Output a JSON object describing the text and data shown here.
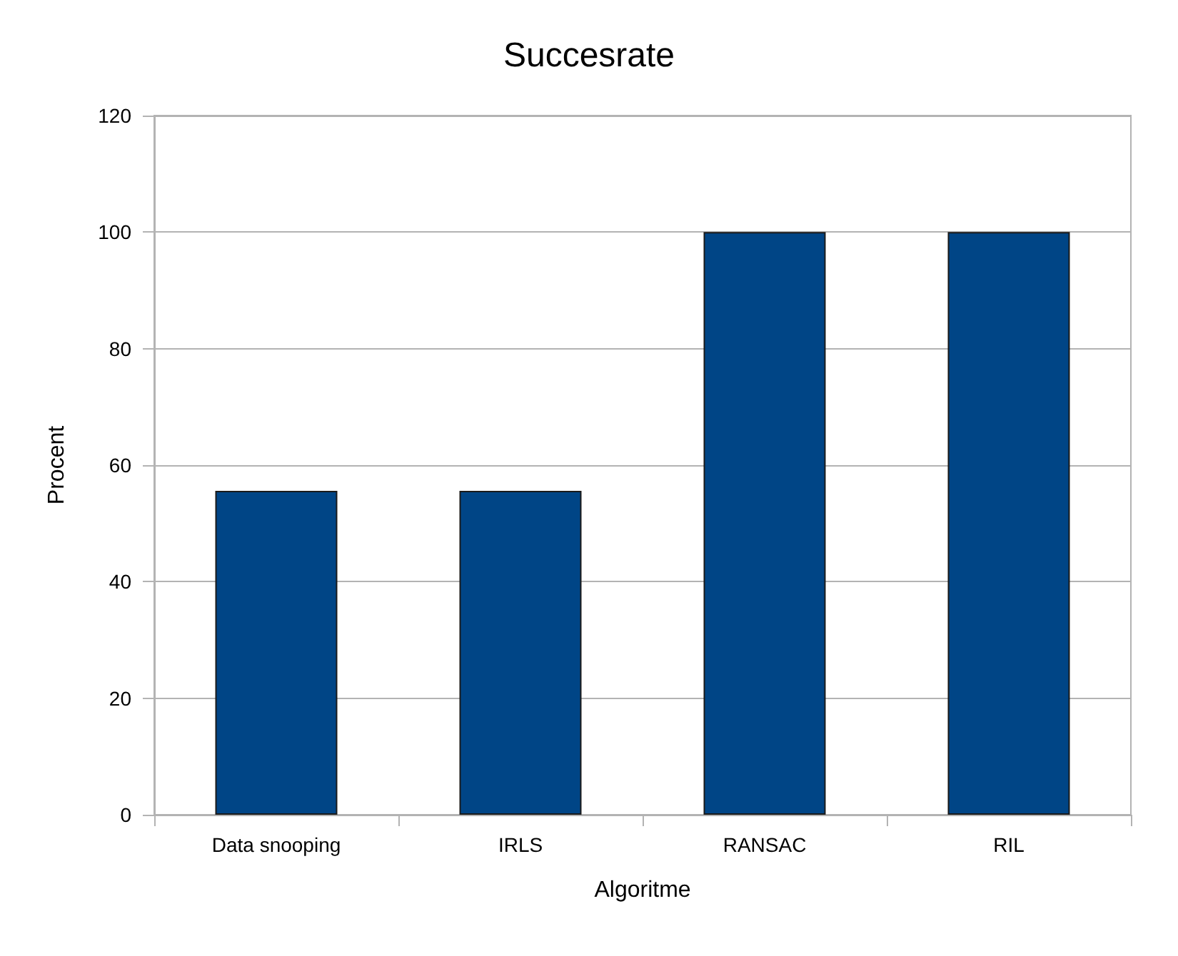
{
  "chart_data": {
    "type": "bar",
    "title": "Succesrate",
    "xlabel": "Algoritme",
    "ylabel": "Procent",
    "categories": [
      "Data snooping",
      "IRLS",
      "RANSAC",
      "RIL"
    ],
    "values": [
      55.6,
      55.6,
      100,
      100
    ],
    "color": "#004586",
    "ylim": [
      0,
      120
    ],
    "yticks": [
      0,
      20,
      40,
      60,
      80,
      100,
      120
    ],
    "grid": "y"
  }
}
